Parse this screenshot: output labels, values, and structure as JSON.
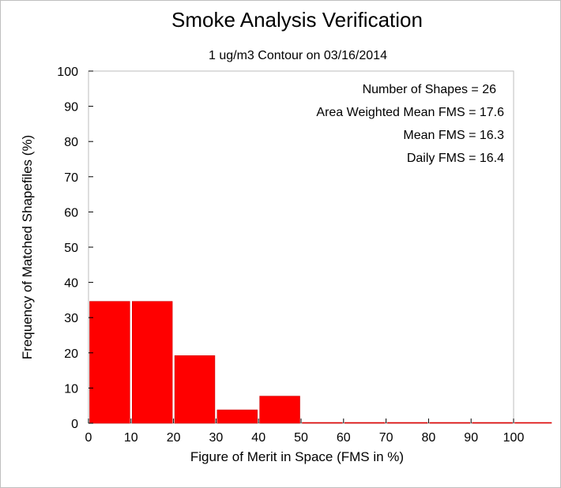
{
  "chart_data": {
    "type": "bar",
    "title": "Smoke Analysis Verification",
    "subtitle": "1 ug/m3 Contour on 03/16/2014",
    "xlabel": "Figure of Merit in Space (FMS in %)",
    "ylabel": "Frequency of Matched Shapefiles (%)",
    "xlim": [
      0,
      100
    ],
    "ylim": [
      0,
      100
    ],
    "x_ticks": [
      "0",
      "10",
      "20",
      "30",
      "40",
      "50",
      "60",
      "70",
      "80",
      "90",
      "100"
    ],
    "y_ticks": [
      "0",
      "10",
      "20",
      "30",
      "40",
      "50",
      "60",
      "70",
      "80",
      "90",
      "100"
    ],
    "bins": [
      {
        "from": 0,
        "to": 10,
        "value": 34.6
      },
      {
        "from": 10,
        "to": 20,
        "value": 34.6
      },
      {
        "from": 20,
        "to": 30,
        "value": 19.2
      },
      {
        "from": 30,
        "to": 40,
        "value": 3.8
      },
      {
        "from": 40,
        "to": 50,
        "value": 7.7
      },
      {
        "from": 50,
        "to": 60,
        "value": 0
      },
      {
        "from": 60,
        "to": 70,
        "value": 0
      },
      {
        "from": 70,
        "to": 80,
        "value": 0
      },
      {
        "from": 80,
        "to": 90,
        "value": 0
      },
      {
        "from": 90,
        "to": 100,
        "value": 0
      },
      {
        "from": 100,
        "to": 110,
        "value": 0
      }
    ],
    "bar_color": "#ff0000",
    "annotations": [
      "Number of Shapes = 26",
      "Area Weighted Mean FMS = 17.6",
      "Mean FMS = 16.3",
      "Daily FMS = 16.4"
    ]
  }
}
